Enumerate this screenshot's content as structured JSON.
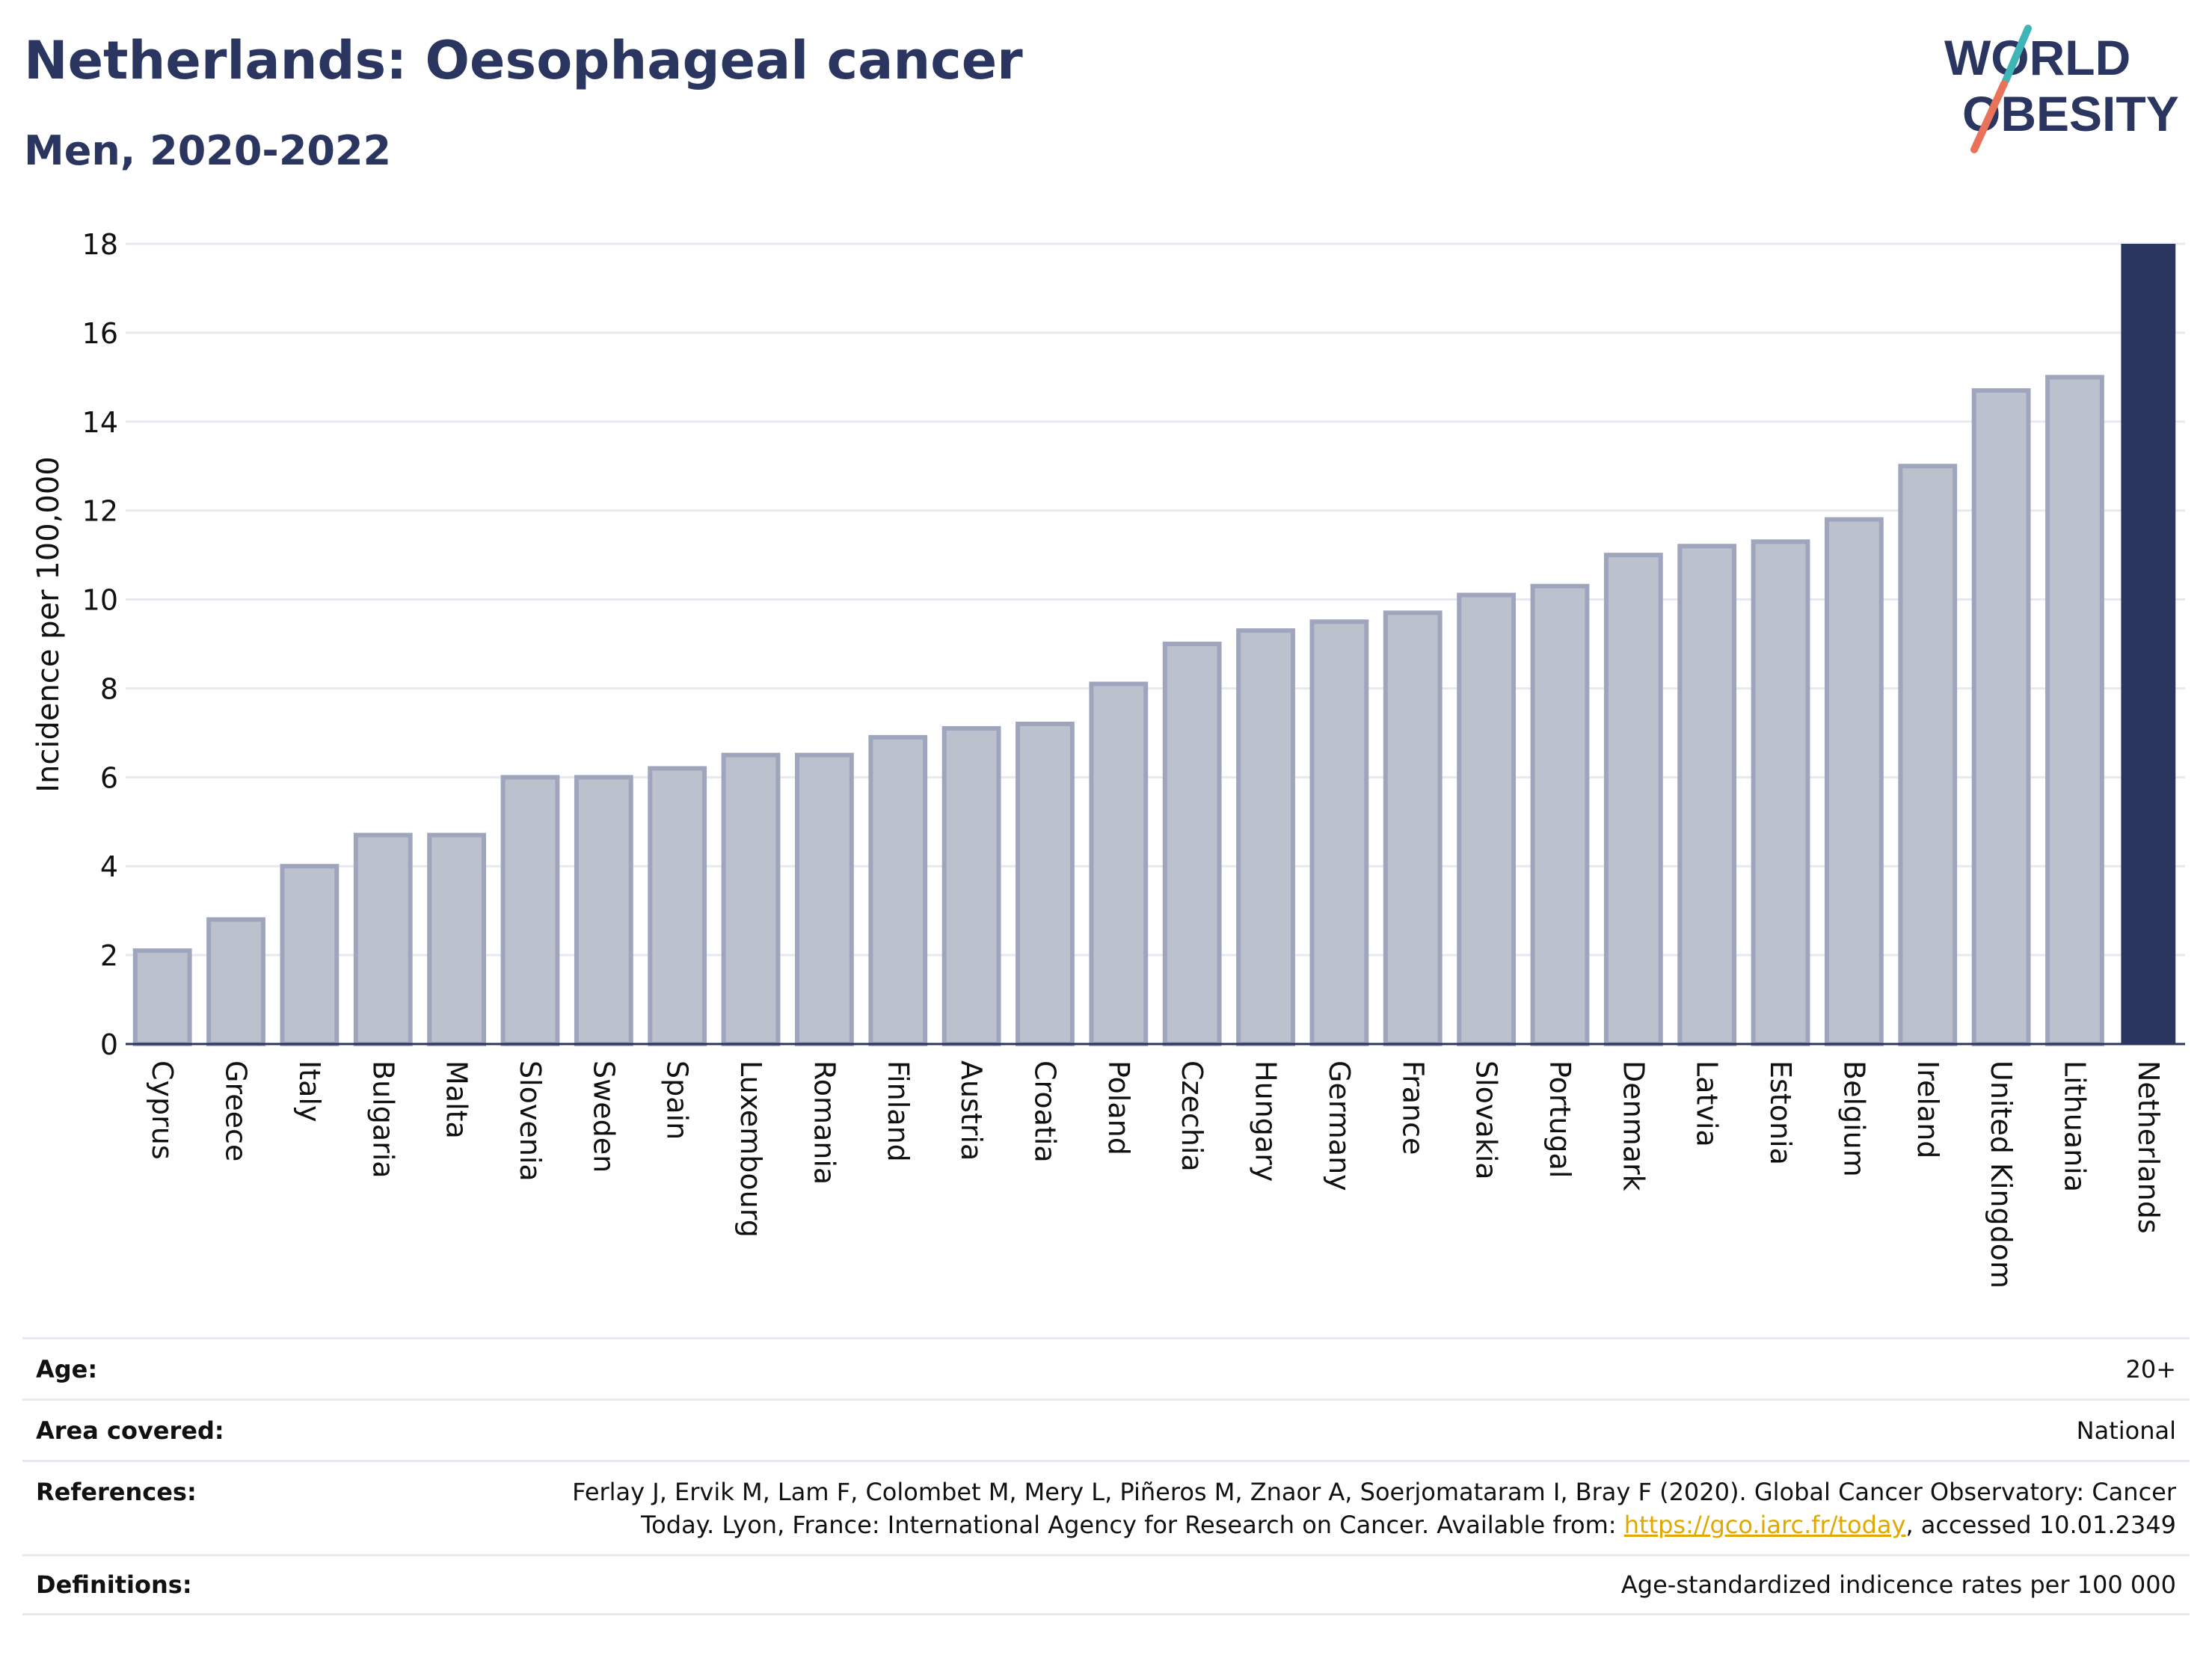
{
  "header": {
    "title": "Netherlands: Oesophageal cancer",
    "subtitle": "Men, 2020-2022"
  },
  "logo": {
    "line1": "WORLD",
    "line2": "OBESITY",
    "brand_color": "#2a3560",
    "slash_color_top": "#3fb5b8",
    "slash_color_bottom": "#e8735a"
  },
  "colors": {
    "bar_fill": "#bcc1ce",
    "bar_stroke": "#9fa5bd",
    "highlight_bar": "#2a3560",
    "grid": "#e6e9ef",
    "axis": "#2a3560"
  },
  "chart_data": {
    "type": "bar",
    "ylabel": "Incidence per 100,000",
    "xlabel": "",
    "ylim": [
      0,
      18
    ],
    "yticks": [
      0,
      2,
      4,
      6,
      8,
      10,
      12,
      14,
      16,
      18
    ],
    "grid": true,
    "highlight": "Netherlands",
    "categories": [
      "Cyprus",
      "Greece",
      "Italy",
      "Bulgaria",
      "Malta",
      "Slovenia",
      "Sweden",
      "Spain",
      "Luxembourg",
      "Romania",
      "Finland",
      "Austria",
      "Croatia",
      "Poland",
      "Czechia",
      "Hungary",
      "Germany",
      "France",
      "Slovakia",
      "Portugal",
      "Denmark",
      "Latvia",
      "Estonia",
      "Belgium",
      "Ireland",
      "United Kingdom",
      "Lithuania",
      "Netherlands"
    ],
    "values": [
      2.1,
      2.8,
      4.0,
      4.7,
      4.7,
      6.0,
      6.0,
      6.2,
      6.5,
      6.5,
      6.9,
      7.1,
      7.2,
      8.1,
      9.0,
      9.3,
      9.5,
      9.7,
      10.1,
      10.3,
      11.0,
      11.2,
      11.3,
      11.8,
      13.0,
      14.7,
      15.0,
      18.0
    ]
  },
  "info": {
    "age_label": "Age:",
    "age_value": "20+",
    "area_label": "Area covered:",
    "area_value": "National",
    "references_label": "References:",
    "references_line1": "Ferlay J, Ervik M, Lam F, Colombet M, Mery L, Piñeros M, Znaor A, Soerjomataram I, Bray F (2020). Global Cancer Observatory: Cancer",
    "references_line2_prefix": "Today. Lyon, France: International Agency for Research on Cancer. Available from: ",
    "references_link": "https://gco.iarc.fr/today",
    "references_line2_suffix": ", accessed 10.01.2349",
    "definitions_label": "Definitions:",
    "definitions_value": "Age-standardized indicence rates per 100 000"
  }
}
